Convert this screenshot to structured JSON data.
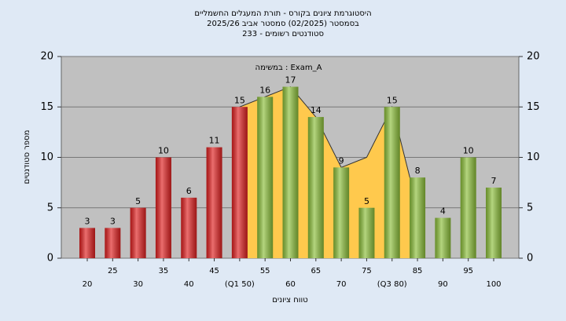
{
  "chart_data": {
    "type": "bar",
    "title_lines": [
      "היסטוגרמת ציונים בקורס - תורת המעגלים החשמליים",
      "בסמסטר  (02/2025)  סמסטר אביב 2025/26",
      "סטודנטים רשומים - 233"
    ],
    "annotation": "במשימה : Exam_A",
    "x_label": "טווח ציונים",
    "y_label": "מספר סטודנטים",
    "categories": [
      "20",
      "25",
      "30",
      "35",
      "40",
      "45",
      "(Q1 50)",
      "55",
      "60",
      "65",
      "70",
      "75",
      "(Q3 80)",
      "85",
      "90",
      "95",
      "100"
    ],
    "values": [
      3,
      3,
      5,
      10,
      6,
      11,
      15,
      16,
      17,
      14,
      9,
      5,
      15,
      8,
      4,
      10,
      7
    ],
    "bar_colors": [
      "#e02020",
      "#e02020",
      "#e02020",
      "#e02020",
      "#e02020",
      "#e02020",
      "#e02020",
      "#8cbf3a",
      "#8cbf3a",
      "#8cbf3a",
      "#8cbf3a",
      "#8cbf3a",
      "#8cbf3a",
      "#8cbf3a",
      "#8cbf3a",
      "#8cbf3a",
      "#8cbf3a"
    ],
    "area": {
      "color": "#ffc94d",
      "values": [
        null,
        null,
        null,
        null,
        null,
        null,
        15,
        16,
        17,
        14,
        9,
        10,
        15,
        5,
        null,
        null,
        null
      ]
    },
    "ylim": [
      0,
      20
    ],
    "yticks": [
      0,
      5,
      10,
      15,
      20
    ],
    "y2lim": [
      0,
      20
    ],
    "y2ticks": [
      0,
      5,
      10,
      15,
      20
    ],
    "grid": true
  }
}
